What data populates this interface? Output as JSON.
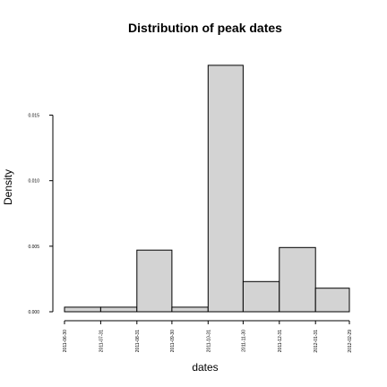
{
  "chart_data": {
    "type": "histogram",
    "title": "Distribution of peak dates",
    "xlabel": "dates",
    "ylabel": "Density",
    "x_tick_labels": [
      "2011-06-30",
      "2011-07-31",
      "2011-08-31",
      "2011-09-30",
      "2011-10-31",
      "2011-11-30",
      "2011-12-31",
      "2012-01-31",
      "2012-02-29"
    ],
    "y_ticks": [
      0.0,
      0.005,
      0.01,
      0.015
    ],
    "y_tick_labels": [
      "0.000",
      "0.005",
      "0.010",
      "0.015"
    ],
    "ylim": [
      0,
      0.019
    ],
    "bins": [
      {
        "start": "2011-06-30",
        "end": "2011-07-31",
        "density": 0.00035
      },
      {
        "start": "2011-07-31",
        "end": "2011-08-31",
        "density": 0.00035
      },
      {
        "start": "2011-08-31",
        "end": "2011-09-30",
        "density": 0.0047
      },
      {
        "start": "2011-09-30",
        "end": "2011-10-31",
        "density": 0.00035
      },
      {
        "start": "2011-10-31",
        "end": "2011-11-30",
        "density": 0.0188
      },
      {
        "start": "2011-11-30",
        "end": "2011-12-31",
        "density": 0.0023
      },
      {
        "start": "2011-12-31",
        "end": "2012-01-31",
        "density": 0.0049
      },
      {
        "start": "2012-01-31",
        "end": "2012-02-29",
        "density": 0.0018
      }
    ],
    "bar_color": "#d3d3d3",
    "grid": false
  }
}
